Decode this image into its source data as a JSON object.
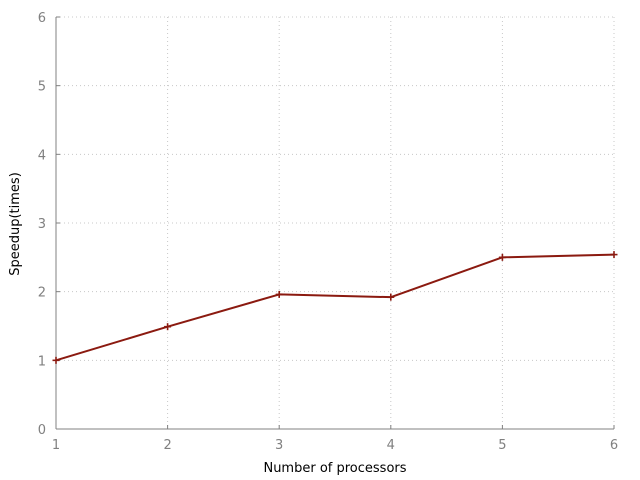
{
  "chart_data": {
    "type": "line",
    "title": "",
    "xlabel": "Number of processors",
    "ylabel": "Speedup(times)",
    "xlim": [
      1,
      6
    ],
    "ylim": [
      0,
      6
    ],
    "xticks": [
      1,
      2,
      3,
      4,
      5,
      6
    ],
    "yticks": [
      0,
      1,
      2,
      3,
      4,
      5,
      6
    ],
    "xtick_labels": [
      "1",
      "2",
      "3",
      "4",
      "5",
      "6"
    ],
    "ytick_labels": [
      "0",
      "1",
      "2",
      "3",
      "4",
      "5",
      "6"
    ],
    "grid": true,
    "legend": "none",
    "series": [
      {
        "x": [
          1,
          2,
          3,
          4,
          5,
          6
        ],
        "values": [
          1.0,
          1.49,
          1.96,
          1.92,
          2.5,
          2.54
        ],
        "color": "#8b1a10",
        "marker": "plus"
      }
    ]
  },
  "colors": {
    "axis": "#808080",
    "grid": "#c8c8c8",
    "tick_label": "#808080"
  }
}
